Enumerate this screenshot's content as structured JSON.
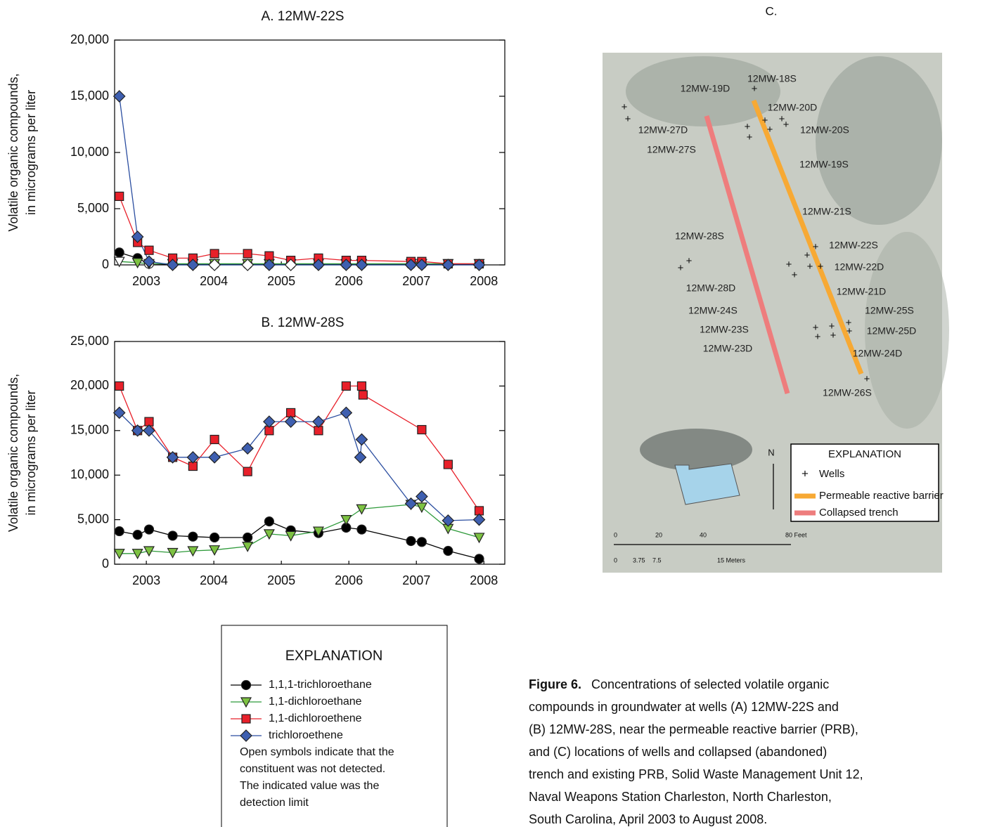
{
  "chart_data": [
    {
      "type": "line",
      "title": "A. 12MW-22S",
      "ylabel": [
        "Volatile organic compounds,",
        "in micrograms per liter"
      ],
      "xlim": [
        2003.03,
        2008.81
      ],
      "xticks": [
        {
          "value": 2003.5,
          "label": "2003"
        },
        {
          "value": 2004.5,
          "label": "2004"
        },
        {
          "value": 2005.5,
          "label": "2005"
        },
        {
          "value": 2006.5,
          "label": "2006"
        },
        {
          "value": 2007.5,
          "label": "2007"
        },
        {
          "value": 2008.5,
          "label": "2008"
        }
      ],
      "ylim": [
        0,
        20000
      ],
      "yticks": [
        0,
        {
          "value": 5000,
          "label": "5,000"
        },
        {
          "value": 10000,
          "label": "10,000"
        },
        {
          "value": 15000,
          "label": "15,000"
        },
        {
          "value": 20000,
          "label": "20,000"
        }
      ],
      "series": [
        {
          "name": "1,1,1-trichloroethane",
          "marker": "circle",
          "color": "#000000",
          "line": "#000000",
          "x": [
            2003.1,
            2003.37,
            2003.54,
            2003.89,
            2004.19,
            2004.51,
            2005.0,
            2005.32,
            2005.64,
            2006.05,
            2006.46,
            2006.69,
            2007.42,
            2007.58,
            2007.97,
            2008.43
          ],
          "values": [
            1100,
            600,
            100,
            50,
            50,
            50,
            50,
            50,
            50,
            50,
            50,
            50,
            50,
            50,
            50,
            50
          ],
          "open": [
            false,
            false,
            true,
            true,
            true,
            true,
            true,
            true,
            true,
            true,
            true,
            true,
            true,
            true,
            true,
            true
          ]
        },
        {
          "name": "1,1-dichloroethane",
          "marker": "triangle",
          "color": "#7dc242",
          "line": "#2e9a3a",
          "x": [
            2003.1,
            2003.37,
            2003.54,
            2003.89,
            2004.19,
            2004.51,
            2005.0,
            2005.32,
            2005.64,
            2006.05,
            2006.46,
            2006.69,
            2007.42,
            2007.58,
            2007.97,
            2008.43
          ],
          "values": [
            300,
            200,
            100,
            100,
            100,
            100,
            100,
            100,
            100,
            100,
            100,
            100,
            100,
            100,
            100,
            100
          ],
          "open": [
            true,
            false,
            false,
            false,
            false,
            false,
            false,
            false,
            false,
            false,
            false,
            false,
            false,
            false,
            false,
            false
          ]
        },
        {
          "name": "1,1-dichloroethene",
          "marker": "square",
          "color": "#e8202a",
          "line": "#e8202a",
          "x": [
            2003.1,
            2003.37,
            2003.54,
            2003.89,
            2004.19,
            2004.51,
            2005.0,
            2005.32,
            2005.64,
            2006.05,
            2006.46,
            2006.69,
            2007.42,
            2007.58,
            2007.97,
            2008.43
          ],
          "values": [
            6100,
            2000,
            1300,
            600,
            600,
            1000,
            1000,
            800,
            400,
            600,
            400,
            400,
            300,
            300,
            100,
            100
          ],
          "open": [
            false,
            false,
            false,
            false,
            false,
            false,
            false,
            false,
            false,
            false,
            false,
            false,
            false,
            false,
            false,
            false
          ]
        },
        {
          "name": "trichloroethene",
          "marker": "diamond",
          "color": "#3e5fb0",
          "line": "#2b4ea0",
          "x": [
            2003.1,
            2003.37,
            2003.54,
            2003.89,
            2004.19,
            2004.51,
            2005.0,
            2005.32,
            2005.64,
            2006.05,
            2006.46,
            2006.69,
            2007.42,
            2007.58,
            2007.97,
            2008.43
          ],
          "values": [
            15000,
            2500,
            300,
            0,
            0,
            0,
            0,
            0,
            0,
            0,
            0,
            0,
            0,
            0,
            0,
            0
          ],
          "open": [
            false,
            false,
            false,
            false,
            false,
            true,
            true,
            false,
            true,
            false,
            false,
            false,
            false,
            false,
            false,
            false
          ]
        }
      ]
    },
    {
      "type": "line",
      "title": "B. 12MW-28S",
      "ylabel": [
        "Volatile organic compounds,",
        "in micrograms per liter"
      ],
      "xlim": [
        2003.03,
        2008.81
      ],
      "xticks": [
        {
          "value": 2003.5,
          "label": "2003"
        },
        {
          "value": 2004.5,
          "label": "2004"
        },
        {
          "value": 2005.5,
          "label": "2005"
        },
        {
          "value": 2006.5,
          "label": "2006"
        },
        {
          "value": 2007.5,
          "label": "2007"
        },
        {
          "value": 2008.5,
          "label": "2008"
        }
      ],
      "ylim": [
        0,
        25000
      ],
      "yticks": [
        0,
        {
          "value": 5000,
          "label": "5,000"
        },
        {
          "value": 10000,
          "label": "10,000"
        },
        {
          "value": 15000,
          "label": "15,000"
        },
        {
          "value": 20000,
          "label": "20,000"
        },
        {
          "value": 25000,
          "label": "25,000"
        }
      ],
      "series": [
        {
          "name": "1,1,1-trichloroethane",
          "marker": "circle",
          "color": "#000000",
          "line": "#000000",
          "x": [
            2003.1,
            2003.37,
            2003.54,
            2003.89,
            2004.19,
            2004.51,
            2005.0,
            2005.32,
            2005.64,
            2006.05,
            2006.46,
            2006.69,
            2007.42,
            2007.58,
            2007.97,
            2008.43
          ],
          "values": [
            3700,
            3300,
            3900,
            3200,
            3100,
            3000,
            3000,
            4800,
            3800,
            3500,
            4100,
            3900,
            2600,
            2500,
            1500,
            600
          ]
        },
        {
          "name": "1,1-dichloroethane",
          "marker": "triangle",
          "color": "#7dc242",
          "line": "#2e9a3a",
          "x": [
            2003.1,
            2003.37,
            2003.54,
            2003.89,
            2004.19,
            2004.51,
            2005.0,
            2005.32,
            2005.64,
            2006.05,
            2006.46,
            2006.69,
            2007.42,
            2007.58,
            2007.97,
            2008.43
          ],
          "values": [
            1200,
            1200,
            1500,
            1300,
            1500,
            1600,
            2000,
            3400,
            3200,
            3700,
            5000,
            6200,
            6700,
            6400,
            4000,
            3000
          ]
        },
        {
          "name": "1,1-dichloroethene",
          "marker": "square",
          "color": "#e8202a",
          "line": "#e8202a",
          "x": [
            2003.1,
            2003.37,
            2003.54,
            2003.89,
            2004.19,
            2004.51,
            2005.0,
            2005.32,
            2005.64,
            2006.05,
            2006.46,
            2006.69,
            2006.71,
            2007.58,
            2007.97,
            2008.43
          ],
          "values": [
            20000,
            15000,
            16000,
            12000,
            11000,
            14000,
            10400,
            15000,
            17000,
            15000,
            20000,
            20000,
            19000,
            15100,
            11200,
            6000
          ]
        },
        {
          "name": "trichloroethene",
          "marker": "diamond",
          "color": "#3e5fb0",
          "line": "#2b4ea0",
          "x": [
            2003.1,
            2003.37,
            2003.54,
            2003.89,
            2004.19,
            2004.51,
            2005.0,
            2005.32,
            2005.64,
            2006.05,
            2006.46,
            2006.67,
            2006.69,
            2007.42,
            2007.58,
            2007.97,
            2008.43
          ],
          "values": [
            17000,
            15000,
            15000,
            12000,
            12000,
            12000,
            13000,
            16000,
            16000,
            16000,
            17000,
            12000,
            14000,
            6800,
            7600,
            4900,
            5000
          ]
        }
      ]
    }
  ],
  "explanation": {
    "title": "EXPLANATION",
    "note": [
      "Open symbols indicate that the",
      "constituent was not detected.",
      "The indicated value was the",
      "detection limit"
    ]
  },
  "map": {
    "title": "C.",
    "wells": [
      "12MW-18S",
      "12MW-19D",
      "12MW-20D",
      "12MW-27D",
      "12MW-20S",
      "12MW-27S",
      "12MW-19S",
      "12MW-21S",
      "12MW-28S",
      "12MW-22S",
      "12MW-22D",
      "12MW-28D",
      "12MW-21D",
      "12MW-24S",
      "12MW-25S",
      "12MW-23S",
      "12MW-25D",
      "12MW-23D",
      "12MW-24D",
      "12MW-26S"
    ],
    "legend": {
      "title": "EXPLANATION",
      "wells": "Wells",
      "barrier": "Permeable reactive barrier",
      "trench": "Collapsed trench"
    },
    "north": "N",
    "scale_feet": [
      "0",
      "20",
      "40",
      "80 Feet"
    ],
    "scale_meters": [
      "0",
      "3.75",
      "7.5",
      "15 Meters"
    ]
  },
  "caption": {
    "label": "Figure 6.",
    "lines": [
      "Concentrations of selected volatile organic",
      "compounds in groundwater at wells (A) 12MW-22S and",
      "(B) 12MW-28S, near the permeable reactive barrier (PRB),",
      "and (C) locations of wells and collapsed (abandoned)",
      "trench and existing PRB, Solid Waste Management Unit 12,",
      "Naval Weapons Station Charleston, North Charleston,",
      "South Carolina, April 2003 to August 2008."
    ]
  }
}
